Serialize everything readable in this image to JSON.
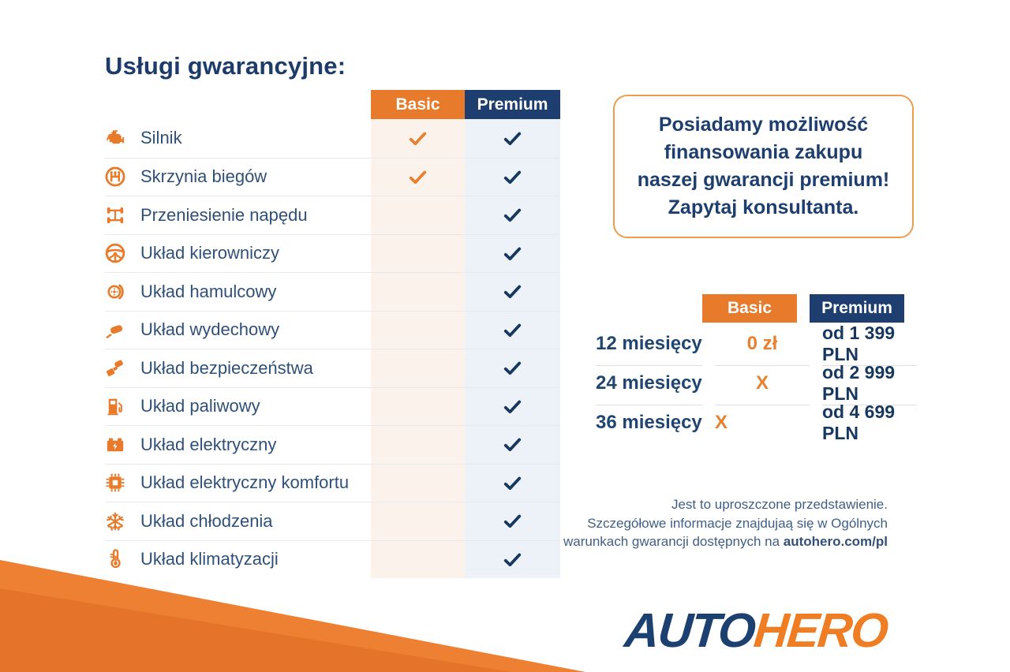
{
  "page": {
    "title": "Usługi gwarancyjne:"
  },
  "colors": {
    "orange": "#E87B2B",
    "navy": "#1D3E6E",
    "label_text": "#2F5078",
    "basic_column_bg": "#FCF2EC",
    "premium_column_bg": "#EDF1F8",
    "check_basic": "#E8802F",
    "check_premium": "#16375E"
  },
  "comparison_table": {
    "columns": [
      {
        "label": "Basic",
        "color": "#E87B2B"
      },
      {
        "label": "Premium",
        "color": "#1D3E6E"
      }
    ],
    "rows": [
      {
        "icon": "engine-icon",
        "label": "Silnik",
        "basic": true,
        "premium": true
      },
      {
        "icon": "gearbox-icon",
        "label": "Skrzynia biegów",
        "basic": true,
        "premium": true
      },
      {
        "icon": "drivetrain-icon",
        "label": "Przeniesienie napędu",
        "basic": false,
        "premium": true
      },
      {
        "icon": "steering-wheel-icon",
        "label": "Układ kierowniczy",
        "basic": false,
        "premium": true
      },
      {
        "icon": "brake-icon",
        "label": "Układ hamulcowy",
        "basic": false,
        "premium": true
      },
      {
        "icon": "exhaust-icon",
        "label": "Układ wydechowy",
        "basic": false,
        "premium": true
      },
      {
        "icon": "seatbelt-icon",
        "label": "Układ bezpieczeństwa",
        "basic": false,
        "premium": true
      },
      {
        "icon": "fuel-pump-icon",
        "label": "Układ paliwowy",
        "basic": false,
        "premium": true
      },
      {
        "icon": "battery-icon",
        "label": "Układ elektryczny",
        "basic": false,
        "premium": true
      },
      {
        "icon": "chip-icon",
        "label": "Układ elektryczny komfortu",
        "basic": false,
        "premium": true
      },
      {
        "icon": "snowflake-icon",
        "label": "Układ chłodzenia",
        "basic": false,
        "premium": true
      },
      {
        "icon": "thermometer-icon",
        "label": "Układ klimatyzacji",
        "basic": false,
        "premium": true
      }
    ]
  },
  "promo_box": {
    "lines": [
      "Posiadamy możliwość",
      "finansowania zakupu",
      "naszej gwarancji premium!",
      "Zapytaj konsultanta."
    ]
  },
  "pricing_table": {
    "columns": [
      "Basic",
      "Premium"
    ],
    "rows": [
      {
        "term": "12 miesięcy",
        "basic": "0 zł",
        "premium": "od 1 399 PLN"
      },
      {
        "term": "24 miesięcy",
        "basic": "X",
        "premium": "od 2 999 PLN"
      },
      {
        "term": "36 miesięcy",
        "basic": "X",
        "premium": "od 4 699 PLN"
      }
    ]
  },
  "disclaimer": {
    "line1": "Jest to uproszczone przedstawienie.",
    "line2": "Szczegółowe informacje znajdujaą się w Ogólnych",
    "line3_prefix": "warunkach gwarancji dostępnych na ",
    "line3_bold": "autohero.com/pl"
  },
  "logo": {
    "part1": "AUTO",
    "part2": "HERO"
  }
}
